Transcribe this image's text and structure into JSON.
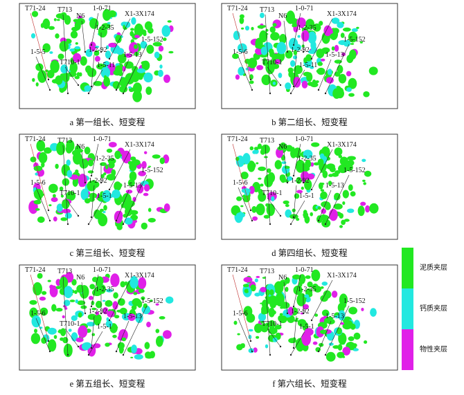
{
  "panels": [
    {
      "caption": "a  第一组长、短变程",
      "labels": [
        "T71-24",
        "T713",
        "N6",
        "1-0-71",
        "X1-3X174",
        "1-5-152",
        "1-2-35",
        "1-5-5",
        "1-2-92",
        "T710-1",
        "1-5-11",
        "1-5-13"
      ]
    },
    {
      "caption": "b  第二组长、短变程",
      "labels": [
        "T71-24",
        "T713",
        "N6",
        "1-0-71",
        "X1-3X174",
        "1-5-152",
        "1-2-35",
        "1-5-6",
        "1-2-92",
        "T710-1",
        "1-5-11",
        "1-5-13"
      ]
    },
    {
      "caption": "c  第三组长、短变程",
      "labels": [
        "T71-24",
        "T713",
        "N6",
        "1-0-71",
        "X1-3X174",
        "1-5-152",
        "1-2-35",
        "1-5-6",
        "1-2-92",
        "T710-1",
        "1-5-1",
        "1-5-13"
      ]
    },
    {
      "caption": "d  第四组长、短变程",
      "labels": [
        "T71-24",
        "T713",
        "N6",
        "1-0-71",
        "X1-3X174",
        "1-5-152",
        "1-2-35",
        "1-5-6",
        "1-2-92",
        "T710-1",
        "1-5-1",
        "1-5-13"
      ]
    },
    {
      "caption": "e  第五组长、短变程",
      "labels": [
        "T71-24",
        "T713",
        "N6",
        "1-0-71",
        "X1-3X174",
        "1-5-152",
        "1-2-35",
        "1-5-6",
        "1-2-92",
        "T710-1",
        "1-5-1",
        "1-5-13"
      ]
    },
    {
      "caption": "f  第六组长、短变程",
      "labels": [
        "T71-24",
        "T713",
        "N6",
        "1-0-71",
        "X1-3X174",
        "1-5-152",
        "1-2-35",
        "1-5-6",
        "1-2-92",
        "T710-1",
        "1-5-1",
        "1-5-13"
      ]
    }
  ],
  "legend": [
    {
      "label": "泥质夹层",
      "color": "#22e822"
    },
    {
      "label": "钙质夹层",
      "color": "#22e8e0"
    },
    {
      "label": "物性夹层",
      "color": "#e020e8"
    }
  ]
}
